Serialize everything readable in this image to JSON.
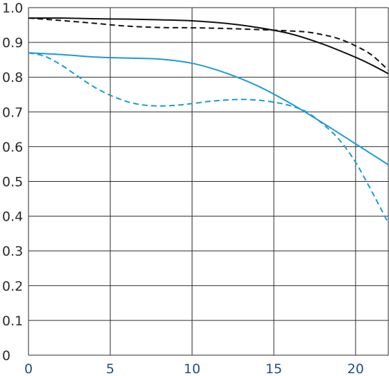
{
  "chart_data": {
    "type": "line",
    "title": "",
    "xlabel": "",
    "ylabel": "",
    "xlim": [
      0,
      22
    ],
    "ylim": [
      0,
      1.0
    ],
    "x_ticks": [
      0,
      5,
      10,
      15,
      20
    ],
    "x_tick_labels": [
      "0",
      "5",
      "10",
      "15",
      "20"
    ],
    "y_ticks": [
      0,
      0.1,
      0.2,
      0.3,
      0.4,
      0.5,
      0.6,
      0.7,
      0.8,
      0.9,
      1.0
    ],
    "y_tick_labels": [
      "0",
      "0.1",
      "0.2",
      "0.3",
      "0.4",
      "0.5",
      "0.6",
      "0.7",
      "0.8",
      "0.9",
      "1.0"
    ],
    "grid": true,
    "legend": "none",
    "series": [
      {
        "color": "#111111",
        "dash": "solid",
        "points": [
          [
            0,
            0.97
          ],
          [
            2,
            0.97
          ],
          [
            4,
            0.968
          ],
          [
            6,
            0.967
          ],
          [
            8,
            0.965
          ],
          [
            10,
            0.962
          ],
          [
            12,
            0.955
          ],
          [
            14,
            0.943
          ],
          [
            16,
            0.925
          ],
          [
            18,
            0.895
          ],
          [
            20,
            0.857
          ],
          [
            21,
            0.835
          ],
          [
            22,
            0.81
          ]
        ]
      },
      {
        "color": "#111111",
        "dash": "dashed",
        "points": [
          [
            0,
            0.97
          ],
          [
            2,
            0.963
          ],
          [
            4,
            0.955
          ],
          [
            6,
            0.947
          ],
          [
            8,
            0.943
          ],
          [
            10,
            0.942
          ],
          [
            12,
            0.94
          ],
          [
            14,
            0.937
          ],
          [
            16,
            0.933
          ],
          [
            17,
            0.93
          ],
          [
            18,
            0.922
          ],
          [
            19,
            0.91
          ],
          [
            20,
            0.89
          ],
          [
            21,
            0.863
          ],
          [
            22,
            0.82
          ]
        ]
      },
      {
        "color": "#1a9ad6",
        "dash": "solid",
        "points": [
          [
            0,
            0.87
          ],
          [
            2,
            0.865
          ],
          [
            4,
            0.858
          ],
          [
            6,
            0.855
          ],
          [
            8,
            0.852
          ],
          [
            10,
            0.84
          ],
          [
            12,
            0.813
          ],
          [
            14,
            0.775
          ],
          [
            16,
            0.725
          ],
          [
            18,
            0.668
          ],
          [
            20,
            0.608
          ],
          [
            22,
            0.548
          ]
        ]
      },
      {
        "color": "#1a9ad6",
        "dash": "dashed",
        "points": [
          [
            0,
            0.87
          ],
          [
            1,
            0.86
          ],
          [
            2,
            0.835
          ],
          [
            3,
            0.803
          ],
          [
            4,
            0.772
          ],
          [
            5,
            0.748
          ],
          [
            6,
            0.73
          ],
          [
            7,
            0.72
          ],
          [
            8,
            0.717
          ],
          [
            9,
            0.719
          ],
          [
            10,
            0.724
          ],
          [
            11,
            0.73
          ],
          [
            12,
            0.734
          ],
          [
            13,
            0.736
          ],
          [
            14,
            0.734
          ],
          [
            15,
            0.728
          ],
          [
            16,
            0.718
          ],
          [
            17,
            0.7
          ],
          [
            18,
            0.665
          ],
          [
            19,
            0.62
          ],
          [
            20,
            0.555
          ],
          [
            21,
            0.47
          ],
          [
            22,
            0.38
          ]
        ]
      }
    ]
  }
}
